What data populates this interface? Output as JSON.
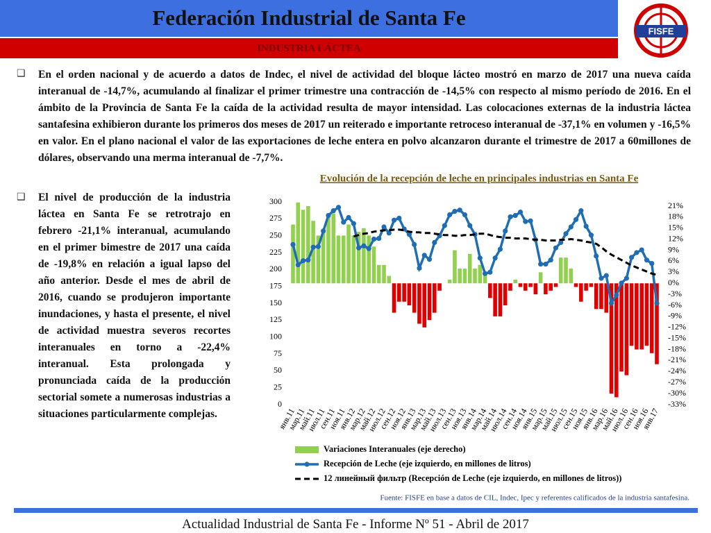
{
  "header": {
    "title": "Federación Industrial de Santa Fe",
    "subtitle": "INDUSTRIA LÁCTEA",
    "logo_text": "FISFE"
  },
  "paragraphs": [
    "En el orden nacional y de acuerdo a datos de Indec, el nivel de actividad del bloque lácteo mostró en marzo de 2017 una nueva caída interanual de -14,7%, acumulando al finalizar el primer trimestre una contracción de -14,5% con respecto al mismo período de 2016. En el ámbito de la Provincia de Santa Fe la caída de la actividad resulta de mayor intensidad. Las colocaciones externas de la industria láctea santafesina exhibieron durante los primeros dos meses de 2017 un reiterado e importante retroceso interanual de -37,1% en volumen y -16,5% en valor. En el plano nacional el valor de las exportaciones de leche entera en polvo alcanzaron durante el trimestre de 2017 a 60millones de dólares, observando una merma interanual de -7,7%.",
    "El nivel de producción de la industria láctea en Santa Fe se retrotrajo en febrero -21,1% interanual, acumulando en el primer bimestre de 2017 una caída de -19,8% en relación a igual lapso del año anterior. Desde el mes de abril de 2016, cuando se produjeron importante inundaciones, y hasta el presente, el nivel de actividad muestra severos recortes interanuales en torno a -22,4% interanual. Esta prolongada y pronunciada caída de la producción sectorial somete a numerosas industrias a situaciones particularmente complejas."
  ],
  "footer": "Actualidad Industrial de Santa Fe - Informe Nº 51 - Abril de 2017",
  "chart_data": {
    "type": "bar_line",
    "title": "Evolución de la recepción de leche  en principales industrias en Santa Fe",
    "source": "Fuente: FISFE en base a datos de CIL, Indec, Ipec y referentes calificados de la industria santafesina.",
    "categories": [
      "янв.11",
      null,
      "мар.11",
      null,
      "май.11",
      null,
      "июл.11",
      null,
      "сен.11",
      null,
      "ноя.11",
      null,
      "янв.12",
      null,
      "мар.12",
      null,
      "май.12",
      null,
      "июл.12",
      null,
      "сен.12",
      null,
      "ноя.12",
      null,
      "янв.13",
      null,
      "мар.13",
      null,
      "май.13",
      null,
      "июл.13",
      null,
      "сен.13",
      null,
      "ноя.13",
      null,
      "янв.14",
      null,
      "мар.14",
      null,
      "май.14",
      null,
      "июл.14",
      null,
      "сен.14",
      null,
      "ноя.14",
      null,
      "янв.15",
      null,
      "мар.15",
      null,
      "май.15",
      null,
      "июл.15",
      null,
      "сен.15",
      null,
      "ноя.15",
      null,
      "янв.16",
      null,
      "мар.16",
      null,
      "май.16",
      null,
      "июл.16",
      null,
      "сен.16",
      null,
      "ноя.16",
      null,
      "янв.17"
    ],
    "series": [
      {
        "name": "Variaciones Interanuales (eje derecho)",
        "kind": "bar",
        "axis": "y2",
        "color": "#92d050",
        "negative_color": "#e00000",
        "values": [
          16,
          22,
          20,
          21,
          17,
          13,
          14,
          18,
          19,
          13,
          13,
          16,
          13,
          14,
          15,
          13,
          10,
          5,
          5,
          2,
          -8,
          -5,
          -5,
          -6,
          -8,
          -11,
          -12,
          -10,
          -8,
          -2,
          0,
          1,
          9,
          4,
          4,
          8,
          4,
          5,
          3,
          -4,
          -9,
          -9,
          -6,
          -2,
          1,
          -1,
          -2,
          -1,
          -3,
          3,
          -3,
          -2,
          -1,
          7,
          7,
          4,
          -1,
          -5,
          -2,
          -1,
          -7,
          -7,
          -8,
          -30,
          -31,
          -24,
          -25,
          -17,
          -18,
          -18,
          -17,
          -19,
          -22
        ]
      },
      {
        "name": "Recepción de Leche (eje izquierdo, en millones de litros)",
        "kind": "line",
        "color": "#1f6eb4",
        "values": [
          237,
          207,
          213,
          214,
          233,
          234,
          257,
          280,
          287,
          292,
          270,
          277,
          268,
          232,
          235,
          231,
          245,
          246,
          263,
          254,
          273,
          276,
          260,
          252,
          237,
          202,
          221,
          215,
          240,
          250,
          265,
          281,
          286,
          288,
          281,
          265,
          252,
          217,
          194,
          196,
          217,
          230,
          257,
          278,
          280,
          285,
          271,
          272,
          244,
          208,
          208,
          214,
          232,
          240,
          253,
          263,
          274,
          287,
          264,
          251,
          220,
          187,
          191,
          150,
          162,
          180,
          187,
          218,
          225,
          229,
          214,
          209,
          150
        ]
      },
      {
        "name": "12 линейный фильтр (Recepción de Leche (eje izquierdo, en millones de litros))",
        "kind": "dashed",
        "color": "#000000",
        "values": [
          null,
          null,
          null,
          null,
          null,
          null,
          null,
          null,
          null,
          null,
          null,
          null,
          249,
          251,
          253,
          254,
          256,
          257,
          258,
          258,
          259,
          259,
          258,
          256,
          255,
          255,
          254,
          254,
          253,
          252,
          251,
          251,
          250,
          250,
          251,
          251,
          252,
          253,
          253,
          251,
          249,
          248,
          247,
          247,
          246,
          246,
          246,
          245,
          244,
          244,
          243,
          243,
          243,
          244,
          244,
          245,
          244,
          243,
          241,
          240,
          238,
          233,
          227,
          222,
          218,
          214,
          210,
          206,
          203,
          200,
          197,
          194,
          192
        ]
      }
    ],
    "ylim": [
      0,
      300
    ],
    "yticks": [
      0,
      25,
      50,
      75,
      100,
      125,
      150,
      175,
      200,
      225,
      250,
      275,
      300
    ],
    "y2lim": [
      -33,
      21
    ],
    "y2ticks": [
      {
        "value": 21,
        "label": "21%"
      },
      {
        "value": 18,
        "label": "18%"
      },
      {
        "value": 15,
        "label": "15%"
      },
      {
        "value": 12,
        "label": "12%"
      },
      {
        "value": 9,
        "label": "9%"
      },
      {
        "value": 6,
        "label": "6%"
      },
      {
        "value": 3,
        "label": "3%"
      },
      {
        "value": 0,
        "label": "0%"
      },
      {
        "value": -3,
        "label": "-3%"
      },
      {
        "value": -6,
        "label": "-6%"
      },
      {
        "value": -9,
        "label": "-9%"
      },
      {
        "value": -12,
        "label": "-12%"
      },
      {
        "value": -15,
        "label": "-15%"
      },
      {
        "value": -18,
        "label": "-18%"
      },
      {
        "value": -21,
        "label": "-21%"
      },
      {
        "value": -24,
        "label": "-24%"
      },
      {
        "value": -27,
        "label": "-27%"
      },
      {
        "value": -30,
        "label": "-30%"
      },
      {
        "value": -33,
        "label": "-33%"
      }
    ],
    "legend": "bottom"
  }
}
